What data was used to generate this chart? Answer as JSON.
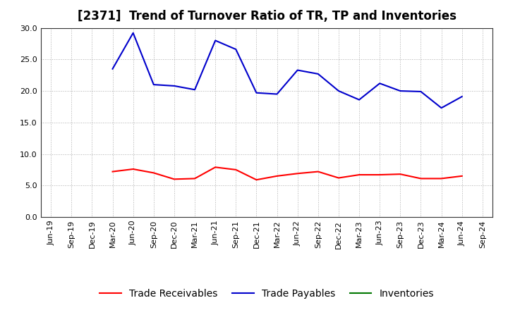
{
  "title": "[2371]  Trend of Turnover Ratio of TR, TP and Inventories",
  "x_labels": [
    "Jun-19",
    "Sep-19",
    "Dec-19",
    "Mar-20",
    "Jun-20",
    "Sep-20",
    "Dec-20",
    "Mar-21",
    "Jun-21",
    "Sep-21",
    "Dec-21",
    "Mar-22",
    "Jun-22",
    "Sep-22",
    "Dec-22",
    "Mar-23",
    "Jun-23",
    "Sep-23",
    "Dec-23",
    "Mar-24",
    "Jun-24",
    "Sep-24"
  ],
  "trade_receivables": [
    null,
    null,
    null,
    7.2,
    7.6,
    7.0,
    6.0,
    6.1,
    7.9,
    7.5,
    5.9,
    6.5,
    6.9,
    7.2,
    6.2,
    6.7,
    6.7,
    6.8,
    6.1,
    6.1,
    6.5,
    null
  ],
  "trade_payables": [
    null,
    null,
    null,
    23.5,
    29.2,
    21.0,
    20.8,
    20.2,
    28.0,
    26.6,
    19.7,
    19.5,
    23.3,
    22.7,
    20.0,
    18.6,
    21.2,
    20.0,
    19.9,
    17.3,
    19.1,
    null
  ],
  "inventories": [
    null,
    null,
    null,
    null,
    null,
    null,
    null,
    null,
    null,
    null,
    null,
    null,
    null,
    null,
    null,
    null,
    null,
    null,
    null,
    null,
    null,
    null
  ],
  "tr_color": "#ff0000",
  "tp_color": "#0000cc",
  "inv_color": "#007700",
  "ylim": [
    0.0,
    30.0
  ],
  "yticks": [
    0.0,
    5.0,
    10.0,
    15.0,
    20.0,
    25.0,
    30.0
  ],
  "background_color": "#ffffff",
  "plot_bg_color": "#ffffff",
  "grid_color": "#999999",
  "title_fontsize": 12,
  "legend_fontsize": 10,
  "tick_fontsize": 8
}
